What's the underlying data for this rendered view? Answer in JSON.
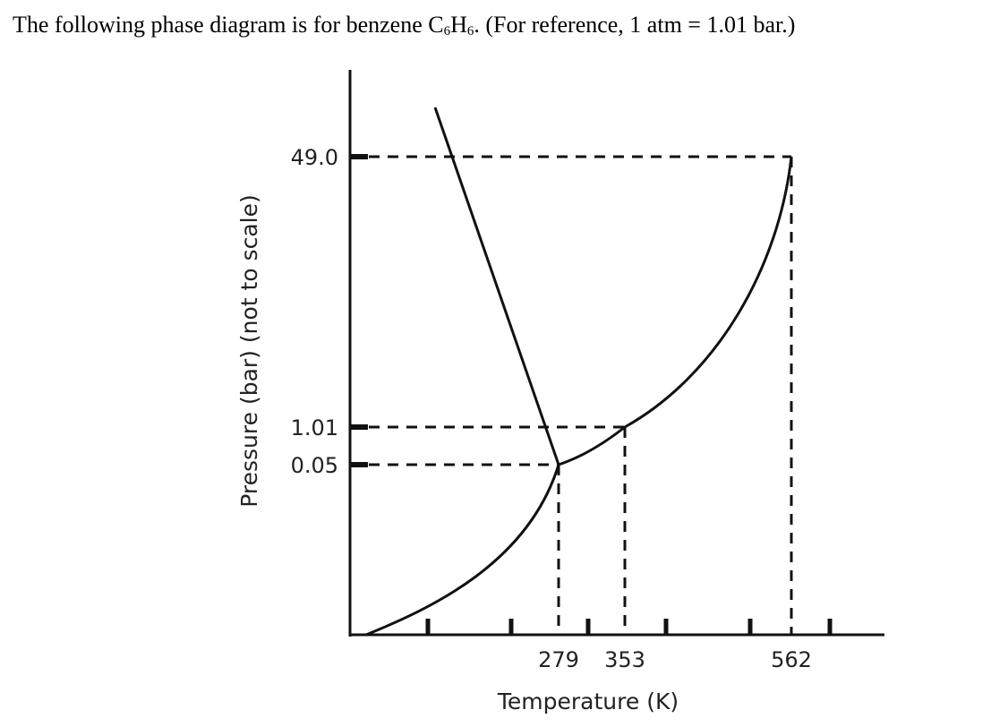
{
  "intro": {
    "before_formula": "The following phase diagram is for benzene C",
    "sub_1": "6",
    "mid_formula": "H",
    "sub_2": "6",
    "after_formula": ".  (For reference, 1 atm = 1.01  bar.)"
  },
  "chart_data": {
    "type": "line",
    "xlabel": "Temperature (K)",
    "ylabel": "Pressure (bar) (not to scale)",
    "x_tick_labels": [
      "279",
      "353",
      "562"
    ],
    "y_tick_labels": [
      "49.0",
      "1.01",
      "0.05"
    ],
    "triple_point": {
      "T": 279,
      "P": 0.05
    },
    "normal_boiling_point": {
      "T": 353,
      "P": 1.01
    },
    "critical_point": {
      "T": 562,
      "P": 49.0
    },
    "curves": [
      "sublimation",
      "melting",
      "vaporization"
    ],
    "unlabeled_x_ticks": 6,
    "colors": {
      "line": "#111111",
      "dashes": "#111111"
    }
  }
}
